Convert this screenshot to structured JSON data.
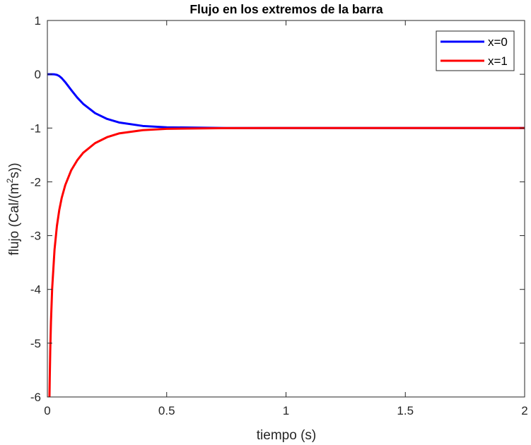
{
  "chart_data": {
    "type": "line",
    "title": "Flujo en los extremos de la barra",
    "xlabel": "tiempo (s)",
    "ylabel_main": "flujo (Cal/(m",
    "ylabel_sup": "2",
    "ylabel_end": "s))",
    "xlim": [
      0,
      2
    ],
    "ylim": [
      -6,
      1
    ],
    "xticks": [
      0,
      0.5,
      1,
      1.5,
      2
    ],
    "xtick_labels": [
      "0",
      "0.5",
      "1",
      "1.5",
      "2"
    ],
    "yticks": [
      1,
      0,
      -1,
      -2,
      -3,
      -4,
      -5,
      -6
    ],
    "ytick_labels": [
      "1",
      "0",
      "-1",
      "-2",
      "-3",
      "-4",
      "-5",
      "-6"
    ],
    "grid": false,
    "legend_position": "top-right",
    "series": [
      {
        "name": "x=0",
        "color": "#0000ff",
        "x": [
          0,
          0.01,
          0.02,
          0.03,
          0.04,
          0.05,
          0.06,
          0.075,
          0.1,
          0.125,
          0.15,
          0.2,
          0.25,
          0.3,
          0.4,
          0.5,
          0.75,
          1,
          1.5,
          2
        ],
        "y": [
          0,
          0,
          0,
          -0.002,
          -0.011,
          -0.034,
          -0.071,
          -0.147,
          -0.293,
          -0.432,
          -0.55,
          -0.723,
          -0.83,
          -0.896,
          -0.961,
          -0.986,
          -0.999,
          -1,
          -1,
          -1
        ]
      },
      {
        "name": "x=1",
        "color": "#ff0000",
        "x": [
          0.0088,
          0.01,
          0.012,
          0.015,
          0.02,
          0.03,
          0.04,
          0.05,
          0.06,
          0.075,
          0.1,
          0.125,
          0.15,
          0.2,
          0.25,
          0.3,
          0.4,
          0.5,
          0.75,
          1,
          1.5,
          2
        ],
        "y": [
          -6,
          -5.64,
          -5.15,
          -4.61,
          -3.99,
          -3.26,
          -2.82,
          -2.52,
          -2.3,
          -2.06,
          -1.784,
          -1.6,
          -1.46,
          -1.28,
          -1.17,
          -1.1,
          -1.039,
          -1.014,
          -1.001,
          -1,
          -1,
          -1
        ]
      }
    ]
  }
}
